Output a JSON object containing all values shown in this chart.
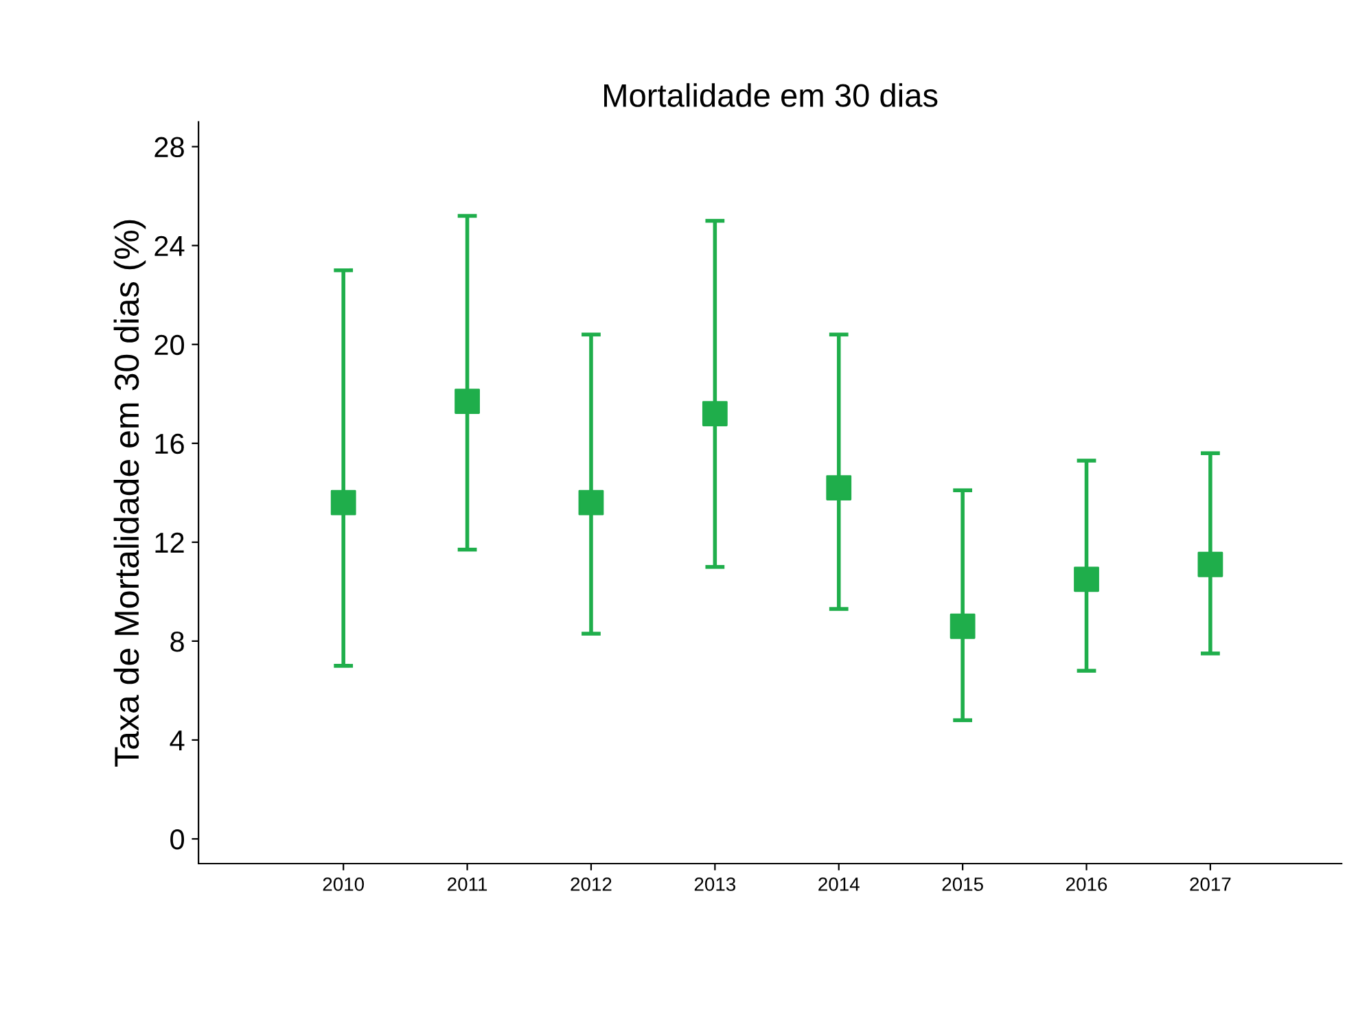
{
  "chart_data": {
    "type": "scatter",
    "title": "Mortalidade em 30 dias",
    "ylabel": "Taxa de Mortalidade em 30 dias (%)",
    "categories": [
      "2010",
      "2011",
      "2012",
      "2013",
      "2014",
      "2015",
      "2016",
      "2017"
    ],
    "values": [
      13.6,
      17.7,
      13.6,
      17.2,
      14.2,
      8.6,
      10.5,
      11.1
    ],
    "errors": [
      [
        7.0,
        23.0
      ],
      [
        11.7,
        25.2
      ],
      [
        8.3,
        20.4
      ],
      [
        11.0,
        25.0
      ],
      [
        9.3,
        20.4
      ],
      [
        4.8,
        14.1
      ],
      [
        6.8,
        15.3
      ],
      [
        7.5,
        15.6
      ]
    ],
    "color": "#1fae4b",
    "marker": "square",
    "ylim": [
      -1,
      29
    ],
    "yticks": [
      0,
      4,
      8,
      12,
      16,
      20,
      24,
      28
    ],
    "grid": false,
    "legend": false
  }
}
